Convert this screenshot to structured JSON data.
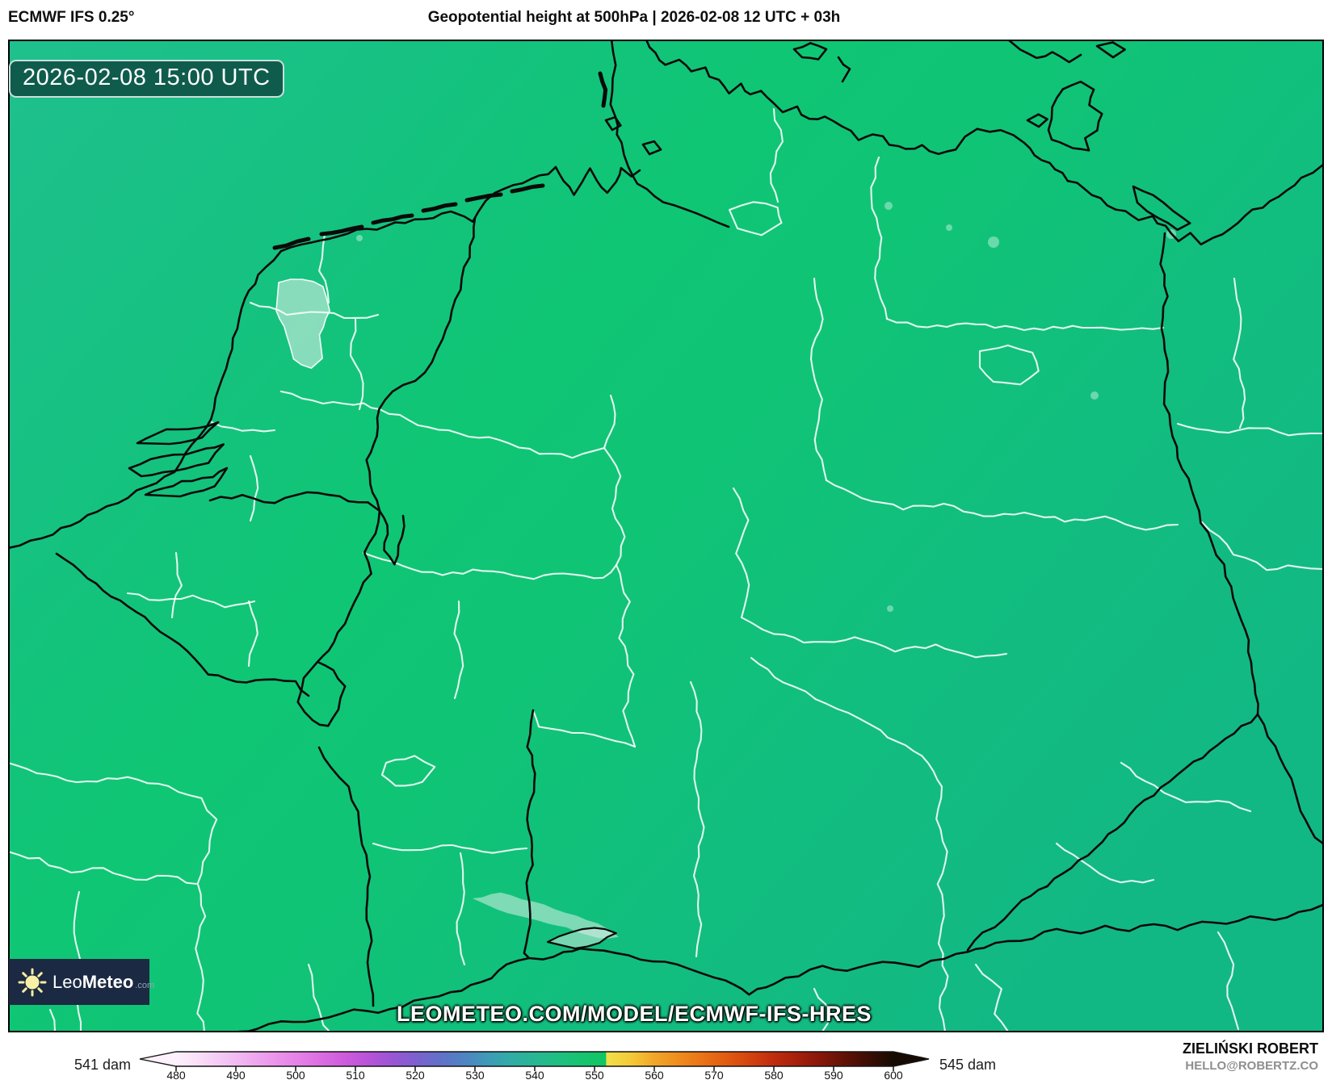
{
  "header": {
    "model_label": "ECMWF IFS 0.25°",
    "title": "Geopotential height at 500hPa | 2026-02-08 12 UTC + 03h"
  },
  "map": {
    "timestamp": "2026-02-08 15:00 UTC",
    "watermark": "LEOMETEO.COM/MODEL/ECMWF-IFS-HRES"
  },
  "logo": {
    "word_light": "Leo",
    "word_bold": "Meteo",
    "tld": ".com",
    "icon": "sun-icon"
  },
  "credits": {
    "name": "ZIELIŃSKI ROBERT",
    "email": "HELLO@ROBERTZ.CO"
  },
  "colorbar": {
    "left_label": "541 dam",
    "right_label": "545 dam",
    "unit": "dam",
    "ticks": [
      480,
      490,
      500,
      510,
      520,
      530,
      540,
      550,
      560,
      570,
      580,
      590,
      600
    ],
    "range": [
      480,
      600
    ],
    "gradient_stops": [
      {
        "v": 480,
        "c": "#fdf1fd"
      },
      {
        "v": 484,
        "c": "#f9ddf8"
      },
      {
        "v": 488,
        "c": "#f4c6f3"
      },
      {
        "v": 492,
        "c": "#f0aff0"
      },
      {
        "v": 496,
        "c": "#ec97ec"
      },
      {
        "v": 500,
        "c": "#e683e8"
      },
      {
        "v": 504,
        "c": "#dc6ee2"
      },
      {
        "v": 508,
        "c": "#cf5cdd"
      },
      {
        "v": 512,
        "c": "#b953d9"
      },
      {
        "v": 516,
        "c": "#9c55d6"
      },
      {
        "v": 520,
        "c": "#7d60cf"
      },
      {
        "v": 524,
        "c": "#6370c9"
      },
      {
        "v": 528,
        "c": "#4f83c3"
      },
      {
        "v": 532,
        "c": "#3e9ab8"
      },
      {
        "v": 536,
        "c": "#31aca6"
      },
      {
        "v": 540,
        "c": "#28b694"
      },
      {
        "v": 544,
        "c": "#1fbf82"
      },
      {
        "v": 548,
        "c": "#16c46f"
      },
      {
        "v": 551.9,
        "c": "#10c562"
      },
      {
        "v": 552,
        "c": "#f1e04b"
      },
      {
        "v": 556,
        "c": "#f4cb37"
      },
      {
        "v": 560,
        "c": "#f2a629"
      },
      {
        "v": 564,
        "c": "#ef8d1e"
      },
      {
        "v": 568,
        "c": "#ea7317"
      },
      {
        "v": 572,
        "c": "#e15b12"
      },
      {
        "v": 576,
        "c": "#d4430f"
      },
      {
        "v": 580,
        "c": "#c02c0d"
      },
      {
        "v": 584,
        "c": "#a61f0b"
      },
      {
        "v": 588,
        "c": "#851609"
      },
      {
        "v": 592,
        "c": "#601106"
      },
      {
        "v": 596,
        "c": "#3a0d04"
      },
      {
        "v": 600,
        "c": "#170a02"
      }
    ]
  },
  "field_colors": {
    "teal_edge": "#1fc08d",
    "green_center": "#0fc674",
    "teal_right": "#12b884"
  }
}
